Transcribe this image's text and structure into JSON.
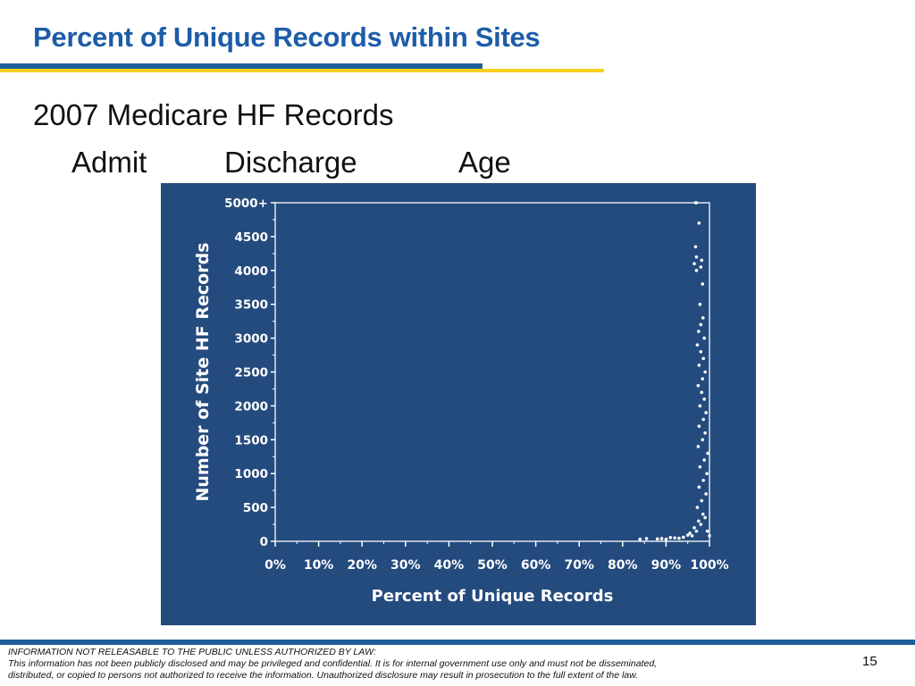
{
  "slide": {
    "title": "Percent of Unique Records within Sites",
    "subtitle": "2007 Medicare HF Records",
    "labels": [
      "Admit",
      "Discharge",
      "Age"
    ],
    "page_number": "15",
    "footer": {
      "line1": "INFORMATION NOT RELEASABLE TO THE PUBLIC UNLESS AUTHORIZED BY LAW:",
      "line2": "This information has not been publicly disclosed and may be privileged and confidential.  It is for internal government use only and must not be disseminated,",
      "line3": "distributed, or copied to persons not authorized to receive the information.  Unauthorized disclosure may result in prosecution to the full extent of the law."
    },
    "colors": {
      "title": "#1d5ca8",
      "rule_blue": "#1f5f9a",
      "rule_gold": "#f5cf1f",
      "chart_background": "#244b7d",
      "chart_foreground": "#ffffff"
    }
  },
  "chart_data": {
    "type": "scatter",
    "title": "",
    "xlabel": "Percent of Unique Records",
    "ylabel": "Number of Site HF Records",
    "xlim": [
      0,
      100
    ],
    "ylim": [
      0,
      5000
    ],
    "x_unit": "percent",
    "x_ticks": [
      0,
      10,
      20,
      30,
      40,
      50,
      60,
      70,
      80,
      90,
      100
    ],
    "x_tick_labels": [
      "0%",
      "10%",
      "20%",
      "30%",
      "40%",
      "50%",
      "60%",
      "70%",
      "80%",
      "90%",
      "100%"
    ],
    "y_ticks": [
      0,
      500,
      1000,
      1500,
      2000,
      2500,
      3000,
      3500,
      4000,
      4500,
      5000
    ],
    "y_tick_labels": [
      "0",
      "500",
      "1000",
      "1500",
      "2000",
      "2500",
      "3000",
      "3500",
      "4000",
      "4500",
      "5000+"
    ],
    "grid": false,
    "series": [
      {
        "points": [
          [
            84,
            30
          ],
          [
            85.5,
            40
          ],
          [
            88,
            35
          ],
          [
            89,
            40
          ],
          [
            90,
            30
          ],
          [
            91,
            55
          ],
          [
            92,
            50
          ],
          [
            93,
            45
          ],
          [
            94,
            60
          ],
          [
            95,
            90
          ],
          [
            95.5,
            120
          ],
          [
            96,
            80
          ],
          [
            96.5,
            200
          ],
          [
            97,
            150
          ],
          [
            97.5,
            300
          ],
          [
            98,
            250
          ],
          [
            98.5,
            400
          ],
          [
            99,
            350
          ],
          [
            99.5,
            150
          ],
          [
            100,
            80
          ],
          [
            97.2,
            500
          ],
          [
            98.2,
            600
          ],
          [
            99.2,
            700
          ],
          [
            97.6,
            800
          ],
          [
            98.6,
            900
          ],
          [
            99.4,
            1000
          ],
          [
            97.8,
            1100
          ],
          [
            98.8,
            1200
          ],
          [
            99.6,
            1300
          ],
          [
            97.4,
            1400
          ],
          [
            98.4,
            1500
          ],
          [
            99.0,
            1600
          ],
          [
            97.6,
            1700
          ],
          [
            98.6,
            1800
          ],
          [
            99.2,
            1900
          ],
          [
            97.8,
            2000
          ],
          [
            98.8,
            2100
          ],
          [
            98.2,
            2200
          ],
          [
            97.4,
            2300
          ],
          [
            98.4,
            2400
          ],
          [
            99.0,
            2500
          ],
          [
            97.6,
            2600
          ],
          [
            98.6,
            2700
          ],
          [
            98.0,
            2800
          ],
          [
            97.2,
            2900
          ],
          [
            98.8,
            3000
          ],
          [
            97.5,
            3100
          ],
          [
            98.0,
            3200
          ],
          [
            98.5,
            3300
          ],
          [
            97.8,
            3500
          ],
          [
            98.4,
            3800
          ],
          [
            97.0,
            4000
          ],
          [
            98.0,
            4050
          ],
          [
            96.5,
            4100
          ],
          [
            98.2,
            4150
          ],
          [
            97.0,
            4200
          ],
          [
            96.8,
            4350
          ],
          [
            97.6,
            4700
          ],
          [
            96.8,
            5000
          ],
          [
            97.0,
            5000
          ]
        ]
      }
    ]
  }
}
